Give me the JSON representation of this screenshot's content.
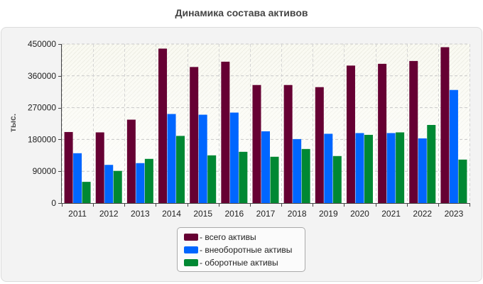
{
  "chart_data": {
    "type": "bar",
    "title": "Динамика состава активов",
    "ylabel": "тыс.",
    "xlabel": "",
    "categories": [
      "2011",
      "2012",
      "2013",
      "2014",
      "2015",
      "2016",
      "2017",
      "2018",
      "2019",
      "2020",
      "2021",
      "2022",
      "2023"
    ],
    "ylim": [
      0,
      450000
    ],
    "yticks": [
      "0",
      "90000",
      "180000",
      "270000",
      "360000",
      "450000"
    ],
    "grid": true,
    "legend": "bottom",
    "series": [
      {
        "name": "- всего активы",
        "color": "#660033",
        "values": [
          201000,
          200000,
          236000,
          437000,
          385000,
          400000,
          334000,
          334000,
          328000,
          389000,
          394000,
          402000,
          441000
        ]
      },
      {
        "name": "- внеоборотные активы",
        "color": "#0066ff",
        "values": [
          141000,
          108000,
          113000,
          252000,
          250000,
          256000,
          203000,
          181000,
          196000,
          198000,
          198000,
          183000,
          320000
        ]
      },
      {
        "name": "- оборотные активы",
        "color": "#008833",
        "values": [
          60000,
          91000,
          125000,
          190000,
          135000,
          145000,
          131000,
          153000,
          133000,
          193000,
          200000,
          221000,
          123000
        ]
      }
    ]
  }
}
